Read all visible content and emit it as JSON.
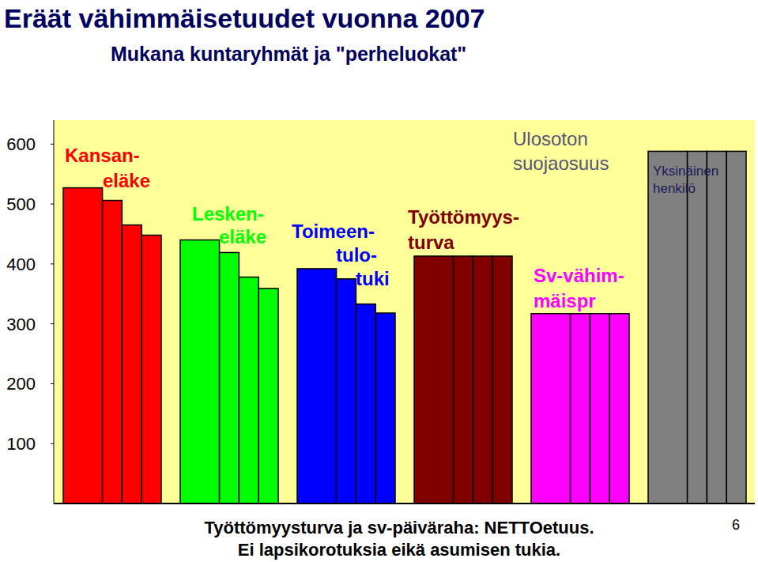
{
  "chart_data": {
    "type": "bar",
    "title": "Eräät vähimmäisetuudet vuonna 2007",
    "subtitle": "Mukana kuntaryhmät ja \"perheluokat\"",
    "series": [
      {
        "name": "Kansan-\neläke",
        "color": "#ff0000",
        "values": [
          527,
          506,
          465,
          448
        ]
      },
      {
        "name": "Lesken-\neläke",
        "color": "#00ff00",
        "values": [
          440,
          419,
          378,
          359
        ]
      },
      {
        "name": "Toimeen-\ntulo-\ntuki",
        "color": "#0000ff",
        "values": [
          392,
          375,
          333,
          318
        ]
      },
      {
        "name": "Työttömyys-\nturva",
        "color": "#800000",
        "values": [
          413,
          413,
          413,
          413
        ]
      },
      {
        "name": "Sv-vähim-\nmäispr",
        "color": "#ff00ff",
        "values": [
          317,
          317,
          317,
          317
        ]
      },
      {
        "name": "Ulosoton\nsuojaosuus",
        "color": "#808080",
        "values": [
          588,
          588,
          588,
          588
        ]
      }
    ],
    "ylim": [
      0,
      640
    ],
    "yticks": [
      100,
      200,
      300,
      400,
      500,
      600
    ],
    "grid": false,
    "data_labels": false,
    "tick_labels": "y",
    "annotations": [
      "Yksinäinen\nhenkilö"
    ],
    "footnotes": [
      "Työttömyysturva ja sv-päiväraha: NETTOetuus.",
      "Ei lapsikorotuksia eikä asumisen tukia."
    ],
    "page_number": "6"
  }
}
